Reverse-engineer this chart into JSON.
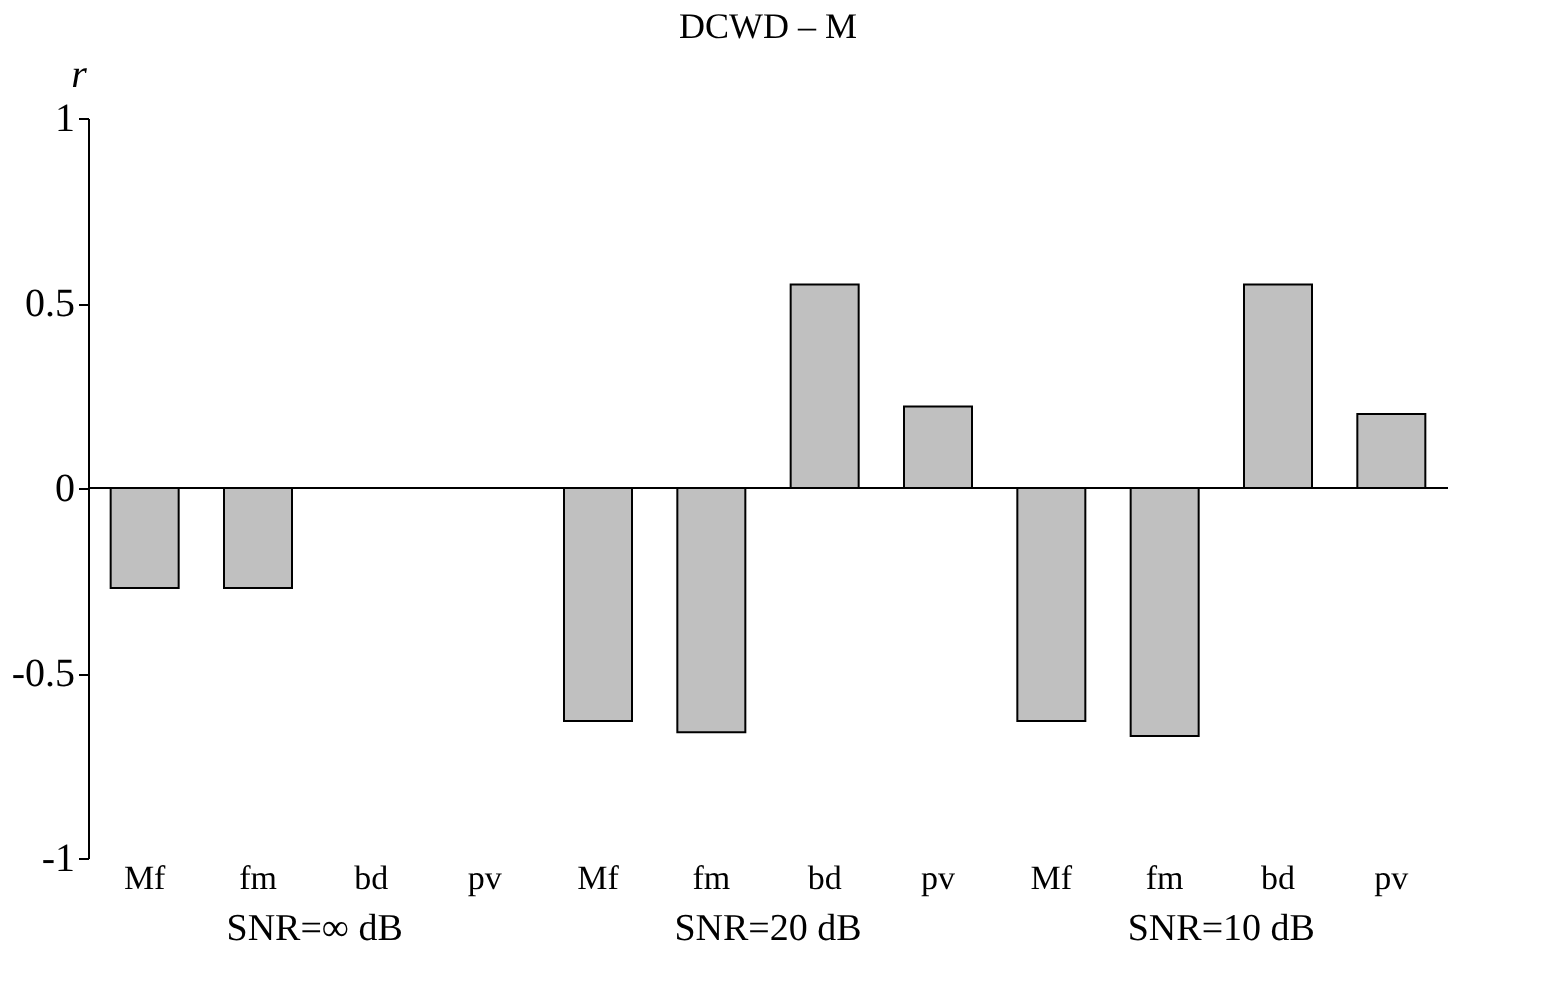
{
  "chart_data": {
    "type": "bar",
    "title": "DCWD – M",
    "ylabel": "r",
    "categories": [
      "Mf",
      "fm",
      "bd",
      "pv",
      "Mf",
      "fm",
      "bd",
      "pv",
      "Mf",
      "fm",
      "bd",
      "pv"
    ],
    "values": [
      -0.27,
      -0.27,
      0,
      0,
      -0.63,
      -0.66,
      0.55,
      0.22,
      -0.63,
      -0.67,
      0.55,
      0.2
    ],
    "color": "#c0c0c0",
    "annotations": [
      "SNR=∞ dB",
      "SNR=20 dB",
      "SNR=10 dB"
    ],
    "ylim": [
      -1,
      1
    ],
    "yticks": [
      -1,
      -0.5,
      0,
      0.5,
      1
    ],
    "grid": false,
    "ref_lines": [
      {
        "axis": "y",
        "value": 0,
        "color": "#000000"
      }
    ]
  }
}
